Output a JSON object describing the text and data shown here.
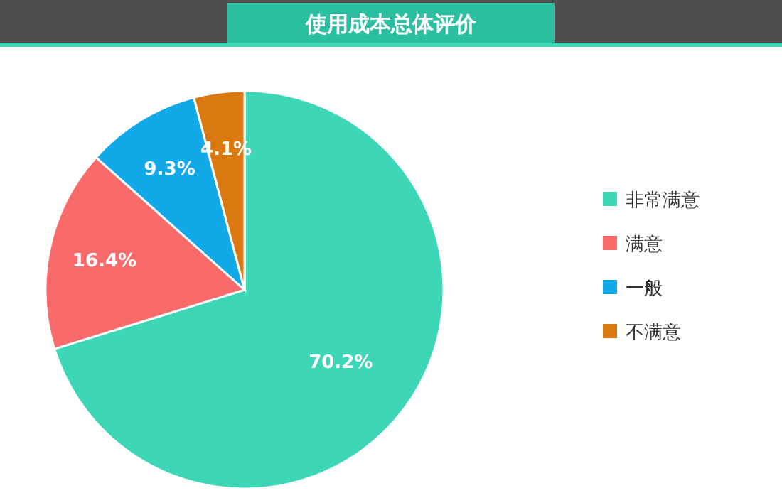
{
  "chart_data": {
    "type": "pie",
    "title": "使用成本总体评价",
    "categories": [
      "非常满意",
      "满意",
      "一般",
      "不满意"
    ],
    "values": [
      70.2,
      16.4,
      9.3,
      4.1
    ],
    "colors": [
      "#3dd6b6",
      "#f96b6b",
      "#12a9e9",
      "#d9790f"
    ],
    "value_labels": [
      "70.2%",
      "16.4%",
      "9.3%",
      "4.1%"
    ],
    "legend": "right"
  }
}
